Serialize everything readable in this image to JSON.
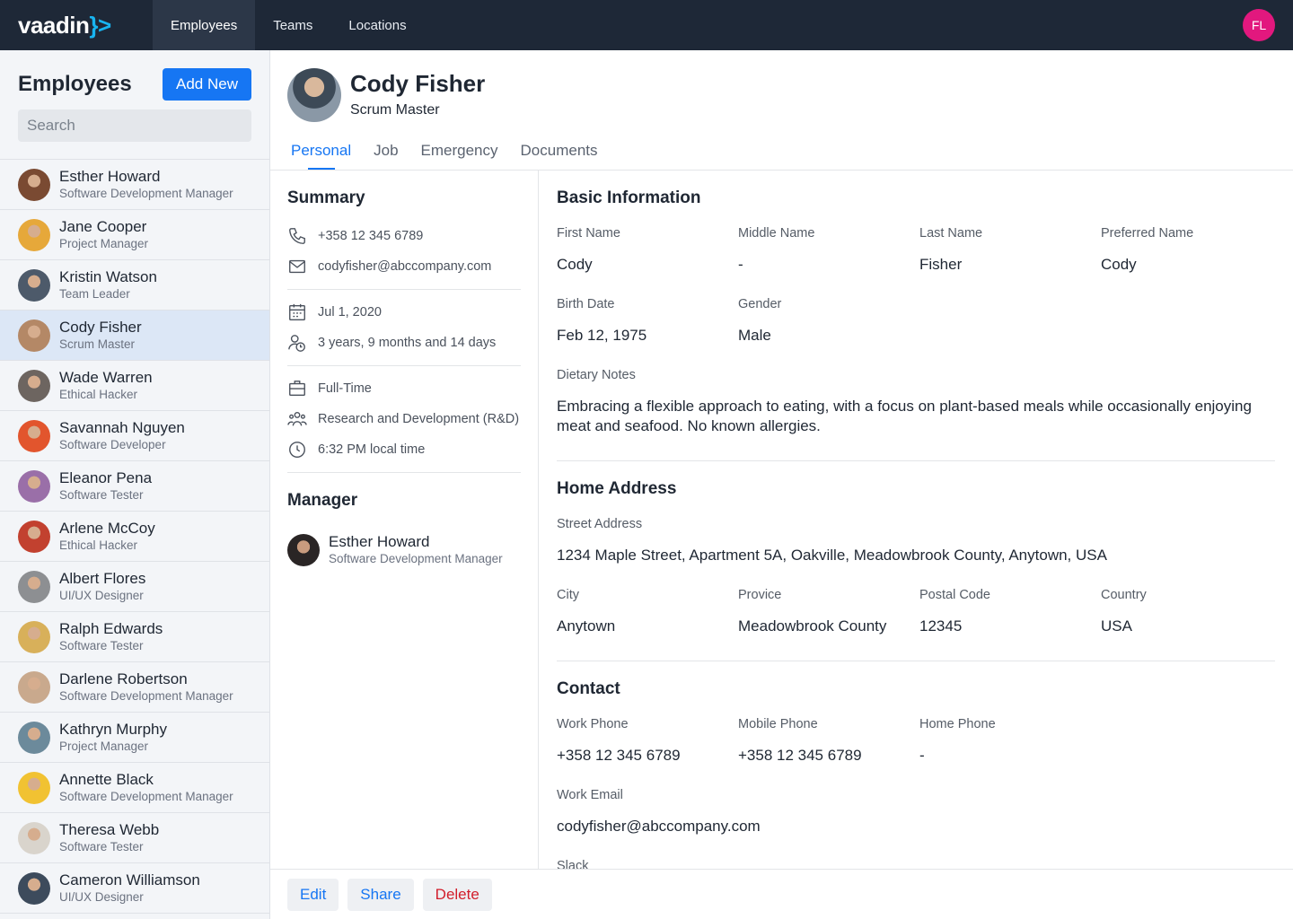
{
  "nav": {
    "brand": {
      "word": "vaadin",
      "mark": "}>"
    },
    "items": [
      "Employees",
      "Teams",
      "Locations"
    ],
    "active": 0,
    "user_initials": "FL"
  },
  "sidebar": {
    "title": "Employees",
    "add_button": "Add New",
    "search_placeholder": "Search",
    "selected": 3,
    "employees": [
      {
        "name": "Esther Howard",
        "role": "Software Development Manager"
      },
      {
        "name": "Jane Cooper",
        "role": "Project Manager"
      },
      {
        "name": "Kristin Watson",
        "role": "Team Leader"
      },
      {
        "name": "Cody Fisher",
        "role": "Scrum Master"
      },
      {
        "name": "Wade Warren",
        "role": "Ethical Hacker"
      },
      {
        "name": "Savannah Nguyen",
        "role": "Software Developer"
      },
      {
        "name": "Eleanor Pena",
        "role": "Software Tester"
      },
      {
        "name": "Arlene McCoy",
        "role": "Ethical Hacker"
      },
      {
        "name": "Albert Flores",
        "role": "UI/UX Designer"
      },
      {
        "name": "Ralph Edwards",
        "role": "Software Tester"
      },
      {
        "name": "Darlene Robertson",
        "role": "Software Development Manager"
      },
      {
        "name": "Kathryn Murphy",
        "role": "Project Manager"
      },
      {
        "name": "Annette Black",
        "role": "Software Development Manager"
      },
      {
        "name": "Theresa Webb",
        "role": "Software Tester"
      },
      {
        "name": "Cameron Williamson",
        "role": "UI/UX Designer"
      }
    ]
  },
  "profile": {
    "name": "Cody Fisher",
    "role": "Scrum Master",
    "tabs": [
      "Personal",
      "Job",
      "Emergency",
      "Documents"
    ],
    "active_tab": 0
  },
  "summary": {
    "title": "Summary",
    "groups": [
      [
        "+358 12 345 6789",
        "codyfisher@abccompany.com"
      ],
      [
        "Jul 1, 2020",
        "3 years, 9 months and 14 days"
      ],
      [
        "Full-Time",
        "Research and Development (R&D)",
        "6:32 PM local time"
      ]
    ]
  },
  "manager": {
    "title": "Manager",
    "name": "Esther Howard",
    "role": "Software Development Manager"
  },
  "sections": [
    {
      "title": "Basic Information",
      "rows": [
        [
          {
            "label": "First Name",
            "value": "Cody"
          },
          {
            "label": "Middle Name",
            "value": "-"
          },
          {
            "label": "Last Name",
            "value": "Fisher"
          },
          {
            "label": "Preferred Name",
            "value": "Cody"
          }
        ],
        [
          {
            "label": "Birth Date",
            "value": "Feb 12, 1975"
          },
          {
            "label": "Gender",
            "value": "Male"
          }
        ],
        [
          {
            "label": "Dietary Notes",
            "value": "Embracing a flexible approach to eating, with a focus on plant-based meals while occasionally enjoying meat and seafood. No known allergies."
          }
        ]
      ]
    },
    {
      "title": "Home Address",
      "rows": [
        [
          {
            "label": "Street Address",
            "value": "1234 Maple Street, Apartment 5A, Oakville, Meadowbrook County, Anytown, USA"
          }
        ],
        [
          {
            "label": "City",
            "value": "Anytown"
          },
          {
            "label": "Provice",
            "value": "Meadowbrook County"
          },
          {
            "label": "Postal Code",
            "value": "12345"
          },
          {
            "label": "Country",
            "value": "USA"
          }
        ]
      ]
    },
    {
      "title": "Contact",
      "rows": [
        [
          {
            "label": "Work Phone",
            "value": "+358 12 345 6789"
          },
          {
            "label": "Mobile Phone",
            "value": "+358 12 345 6789"
          },
          {
            "label": "Home Phone",
            "value": "-"
          }
        ],
        [
          {
            "label": "Work Email",
            "value": "codyfisher@abccompany.com"
          }
        ],
        [
          {
            "label": "Slack"
          }
        ]
      ]
    }
  ],
  "actions": [
    "Edit",
    "Share",
    "Delete"
  ]
}
